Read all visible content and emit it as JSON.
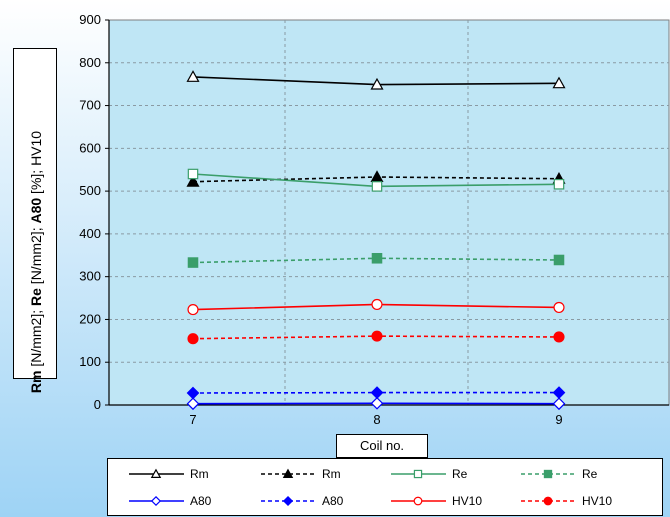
{
  "chart_data": {
    "type": "line",
    "x": [
      7,
      8,
      9
    ],
    "xlabel": "Coil no.",
    "ylabel_parts": [
      {
        "text": "Rm",
        "bold": true
      },
      {
        "text": " [N/mm2]; ",
        "bold": false
      },
      {
        "text": "Re",
        "bold": true
      },
      {
        "text": " [N/mm2]; ",
        "bold": false
      },
      {
        "text": "A80",
        "bold": true
      },
      {
        "text": " [%]; HV10",
        "bold": false
      }
    ],
    "ylim": [
      0,
      900
    ],
    "yticks": [
      0,
      100,
      200,
      300,
      400,
      500,
      600,
      700,
      800,
      900
    ],
    "xticks": [
      "7",
      "8",
      "9"
    ],
    "grid": true,
    "plot_background": "#bfe6f5",
    "legend_placement": "bottom",
    "series": [
      {
        "name": "Rm",
        "values": [
          767,
          749,
          752
        ],
        "color": "#000000",
        "dash": false,
        "marker": "triangle",
        "filled": false
      },
      {
        "name": "Rm",
        "values": [
          522,
          533,
          529
        ],
        "color": "#000000",
        "dash": true,
        "marker": "triangle",
        "filled": true
      },
      {
        "name": "Re",
        "values": [
          540,
          511,
          516
        ],
        "color": "#3a9e6a",
        "dash": false,
        "marker": "square",
        "filled": false
      },
      {
        "name": "Re",
        "values": [
          333,
          343,
          339
        ],
        "color": "#3a9e6a",
        "dash": true,
        "marker": "square",
        "filled": true
      },
      {
        "name": "A80",
        "values": [
          3,
          4,
          3
        ],
        "color": "#0000ff",
        "dash": false,
        "marker": "diamond",
        "filled": false
      },
      {
        "name": "A80",
        "values": [
          28,
          29,
          29
        ],
        "color": "#0000ff",
        "dash": true,
        "marker": "diamond",
        "filled": true
      },
      {
        "name": "HV10",
        "values": [
          223,
          235,
          228
        ],
        "color": "#ff0000",
        "dash": false,
        "marker": "circle",
        "filled": false
      },
      {
        "name": "HV10",
        "values": [
          155,
          161,
          159
        ],
        "color": "#ff0000",
        "dash": true,
        "marker": "circle",
        "filled": true
      }
    ]
  }
}
